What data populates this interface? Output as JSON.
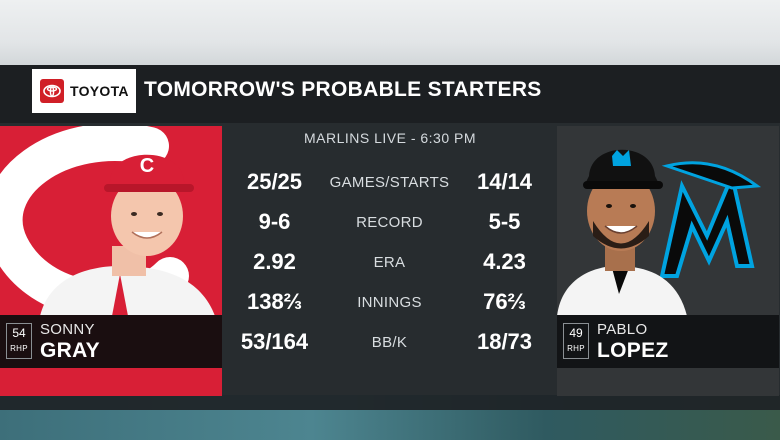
{
  "sponsor": {
    "name": "TOYOTA"
  },
  "header": {
    "title": "TOMORROW'S PROBABLE STARTERS"
  },
  "broadcast": {
    "info": "MARLINS LIVE - 6:30 PM"
  },
  "colors": {
    "reds": "#d81f36",
    "marlins_panel": "#333638",
    "marlins_teal": "#00a3e0"
  },
  "left_player": {
    "number": "54",
    "position": "RHP",
    "first_name": "SONNY",
    "last_name": "GRAY",
    "team_logo": "reds-c-logo",
    "cap_logo": "reds-c-cap-icon"
  },
  "right_player": {
    "number": "49",
    "position": "RHP",
    "first_name": "PABLO",
    "last_name": "LOPEZ",
    "team_logo": "marlins-m-logo",
    "cap_logo": "marlins-cap-icon"
  },
  "stats": [
    {
      "label": "GAMES/STARTS",
      "left": "25/25",
      "right": "14/14"
    },
    {
      "label": "RECORD",
      "left": "9-6",
      "right": "5-5"
    },
    {
      "label": "ERA",
      "left": "2.92",
      "right": "4.23"
    },
    {
      "label": "INNINGS",
      "left": "138⅔",
      "right": "76⅔"
    },
    {
      "label": "BB/K",
      "left": "53/164",
      "right": "18/73"
    }
  ]
}
